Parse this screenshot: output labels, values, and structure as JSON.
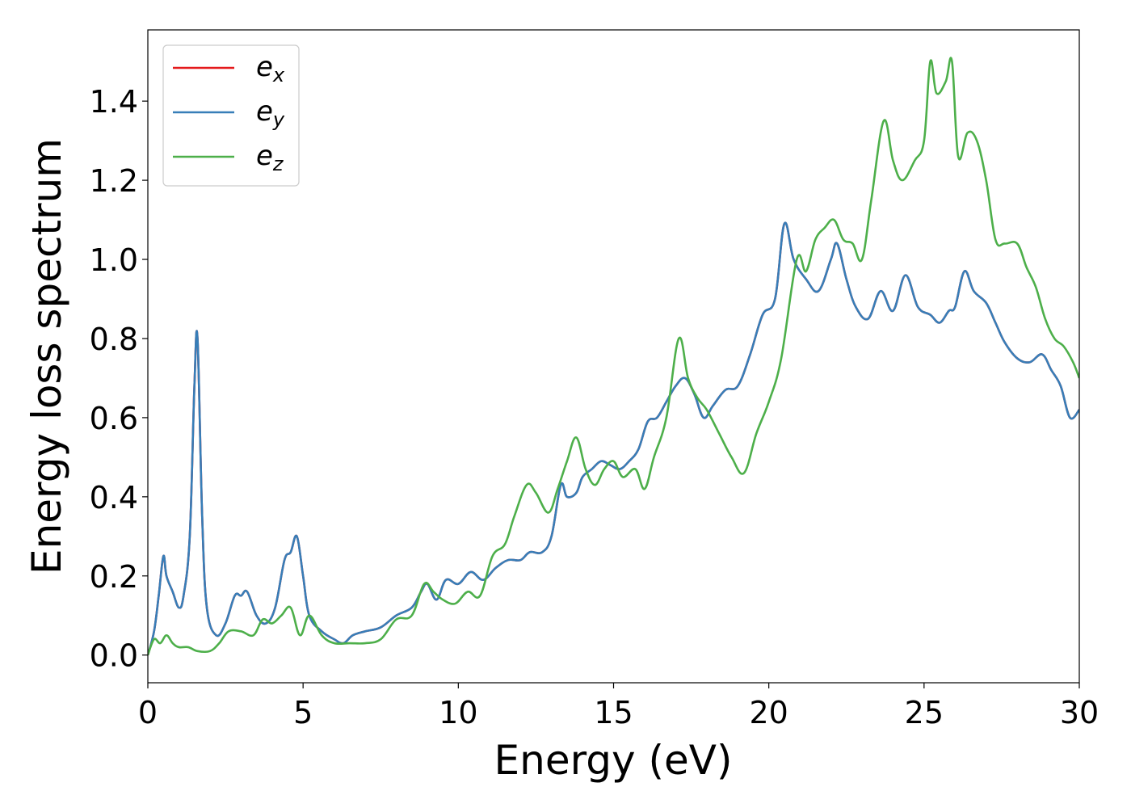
{
  "chart_data": {
    "type": "line",
    "title": "",
    "xlabel": "Energy (eV)",
    "ylabel": "Energy loss spectrum",
    "xlim": [
      0,
      30
    ],
    "ylim": [
      -0.07,
      1.58
    ],
    "xticks": [
      0,
      5,
      10,
      15,
      20,
      25,
      30
    ],
    "xtick_labels": [
      "0",
      "5",
      "10",
      "15",
      "20",
      "25",
      "30"
    ],
    "yticks": [
      0.0,
      0.2,
      0.4,
      0.6,
      0.8,
      1.0,
      1.2,
      1.4
    ],
    "ytick_labels": [
      "0.0",
      "0.2",
      "0.4",
      "0.6",
      "0.8",
      "1.0",
      "1.2",
      "1.4"
    ],
    "grid": false,
    "legend_position": "top-left",
    "series": [
      {
        "name": "e",
        "subscript": "x",
        "color": "#e41a1c",
        "x": [
          0,
          0.2,
          0.35,
          0.5,
          0.6,
          0.8,
          1.0,
          1.15,
          1.35,
          1.5,
          1.6,
          1.75,
          1.9,
          2.2,
          2.5,
          2.8,
          3.0,
          3.2,
          3.5,
          3.8,
          4.1,
          4.4,
          4.6,
          4.8,
          5.0,
          5.2,
          5.6,
          6.0,
          6.3,
          6.6,
          7.0,
          7.5,
          8.0,
          8.5,
          8.8,
          9.0,
          9.3,
          9.6,
          10.0,
          10.4,
          10.8,
          11.2,
          11.6,
          12.0,
          12.3,
          12.7,
          13.0,
          13.3,
          13.5,
          13.8,
          14.0,
          14.3,
          14.6,
          14.9,
          15.2,
          15.5,
          15.8,
          16.1,
          16.4,
          16.7,
          17.0,
          17.3,
          17.6,
          17.9,
          18.2,
          18.6,
          19.0,
          19.4,
          19.8,
          20.2,
          20.5,
          20.8,
          21.2,
          21.6,
          22.0,
          22.2,
          22.5,
          22.8,
          23.2,
          23.6,
          24.0,
          24.4,
          24.8,
          25.2,
          25.5,
          25.8,
          26.0,
          26.3,
          26.6,
          27.0,
          27.3,
          27.6,
          28.0,
          28.4,
          28.8,
          29.1,
          29.4,
          29.7,
          30.0
        ],
        "values": [
          0.0,
          0.06,
          0.15,
          0.25,
          0.2,
          0.16,
          0.12,
          0.15,
          0.3,
          0.68,
          0.8,
          0.35,
          0.12,
          0.05,
          0.08,
          0.15,
          0.15,
          0.16,
          0.1,
          0.08,
          0.12,
          0.24,
          0.26,
          0.3,
          0.2,
          0.1,
          0.06,
          0.04,
          0.03,
          0.05,
          0.06,
          0.07,
          0.1,
          0.12,
          0.16,
          0.18,
          0.14,
          0.19,
          0.18,
          0.21,
          0.19,
          0.22,
          0.24,
          0.24,
          0.26,
          0.26,
          0.3,
          0.43,
          0.4,
          0.41,
          0.45,
          0.47,
          0.49,
          0.48,
          0.47,
          0.49,
          0.52,
          0.59,
          0.6,
          0.64,
          0.68,
          0.7,
          0.66,
          0.6,
          0.63,
          0.67,
          0.68,
          0.76,
          0.86,
          0.9,
          1.09,
          1.0,
          0.95,
          0.92,
          1.0,
          1.04,
          0.95,
          0.88,
          0.85,
          0.92,
          0.87,
          0.96,
          0.88,
          0.86,
          0.84,
          0.87,
          0.88,
          0.97,
          0.92,
          0.89,
          0.84,
          0.79,
          0.75,
          0.74,
          0.76,
          0.72,
          0.68,
          0.6,
          0.62
        ]
      },
      {
        "name": "e",
        "subscript": "y",
        "color": "#377eb8",
        "x": [
          0,
          0.2,
          0.35,
          0.5,
          0.6,
          0.8,
          1.0,
          1.15,
          1.35,
          1.5,
          1.6,
          1.75,
          1.9,
          2.2,
          2.5,
          2.8,
          3.0,
          3.2,
          3.5,
          3.8,
          4.1,
          4.4,
          4.6,
          4.8,
          5.0,
          5.2,
          5.6,
          6.0,
          6.3,
          6.6,
          7.0,
          7.5,
          8.0,
          8.5,
          8.8,
          9.0,
          9.3,
          9.6,
          10.0,
          10.4,
          10.8,
          11.2,
          11.6,
          12.0,
          12.3,
          12.7,
          13.0,
          13.3,
          13.5,
          13.8,
          14.0,
          14.3,
          14.6,
          14.9,
          15.2,
          15.5,
          15.8,
          16.1,
          16.4,
          16.7,
          17.0,
          17.3,
          17.6,
          17.9,
          18.2,
          18.6,
          19.0,
          19.4,
          19.8,
          20.2,
          20.5,
          20.8,
          21.2,
          21.6,
          22.0,
          22.2,
          22.5,
          22.8,
          23.2,
          23.6,
          24.0,
          24.4,
          24.8,
          25.2,
          25.5,
          25.8,
          26.0,
          26.3,
          26.6,
          27.0,
          27.3,
          27.6,
          28.0,
          28.4,
          28.8,
          29.1,
          29.4,
          29.7,
          30.0
        ],
        "values": [
          0.0,
          0.06,
          0.15,
          0.25,
          0.2,
          0.16,
          0.12,
          0.15,
          0.3,
          0.68,
          0.8,
          0.35,
          0.12,
          0.05,
          0.08,
          0.15,
          0.15,
          0.16,
          0.1,
          0.08,
          0.12,
          0.24,
          0.26,
          0.3,
          0.2,
          0.1,
          0.06,
          0.04,
          0.03,
          0.05,
          0.06,
          0.07,
          0.1,
          0.12,
          0.16,
          0.18,
          0.14,
          0.19,
          0.18,
          0.21,
          0.19,
          0.22,
          0.24,
          0.24,
          0.26,
          0.26,
          0.3,
          0.43,
          0.4,
          0.41,
          0.45,
          0.47,
          0.49,
          0.48,
          0.47,
          0.49,
          0.52,
          0.59,
          0.6,
          0.64,
          0.68,
          0.7,
          0.66,
          0.6,
          0.63,
          0.67,
          0.68,
          0.76,
          0.86,
          0.9,
          1.09,
          1.0,
          0.95,
          0.92,
          1.0,
          1.04,
          0.95,
          0.88,
          0.85,
          0.92,
          0.87,
          0.96,
          0.88,
          0.86,
          0.84,
          0.87,
          0.88,
          0.97,
          0.92,
          0.89,
          0.84,
          0.79,
          0.75,
          0.74,
          0.76,
          0.72,
          0.68,
          0.6,
          0.62
        ]
      },
      {
        "name": "e",
        "subscript": "z",
        "color": "#4daf4a",
        "x": [
          0,
          0.2,
          0.4,
          0.6,
          0.8,
          1.0,
          1.3,
          1.6,
          2.0,
          2.3,
          2.6,
          3.0,
          3.4,
          3.7,
          4.0,
          4.3,
          4.6,
          4.9,
          5.2,
          5.6,
          6.0,
          6.5,
          7.0,
          7.5,
          8.0,
          8.5,
          8.9,
          9.2,
          9.5,
          9.9,
          10.3,
          10.7,
          11.1,
          11.5,
          11.8,
          12.2,
          12.5,
          12.9,
          13.2,
          13.5,
          13.8,
          14.1,
          14.4,
          14.7,
          15.0,
          15.3,
          15.7,
          16.0,
          16.3,
          16.7,
          17.1,
          17.4,
          17.7,
          18.0,
          18.4,
          18.8,
          19.2,
          19.6,
          20.0,
          20.4,
          20.9,
          21.2,
          21.5,
          21.8,
          22.1,
          22.4,
          22.7,
          23.0,
          23.3,
          23.7,
          24.0,
          24.3,
          24.7,
          25.0,
          25.2,
          25.4,
          25.7,
          25.9,
          26.1,
          26.4,
          26.7,
          27.0,
          27.3,
          27.6,
          28.0,
          28.3,
          28.6,
          28.9,
          29.2,
          29.5,
          29.8,
          30.0
        ],
        "values": [
          0.0,
          0.04,
          0.03,
          0.05,
          0.03,
          0.02,
          0.02,
          0.01,
          0.01,
          0.03,
          0.06,
          0.06,
          0.05,
          0.09,
          0.08,
          0.1,
          0.12,
          0.05,
          0.1,
          0.05,
          0.03,
          0.03,
          0.03,
          0.04,
          0.09,
          0.1,
          0.18,
          0.16,
          0.14,
          0.13,
          0.16,
          0.15,
          0.25,
          0.28,
          0.35,
          0.43,
          0.41,
          0.36,
          0.42,
          0.49,
          0.55,
          0.47,
          0.43,
          0.47,
          0.49,
          0.45,
          0.47,
          0.42,
          0.5,
          0.6,
          0.8,
          0.7,
          0.65,
          0.62,
          0.56,
          0.5,
          0.46,
          0.56,
          0.64,
          0.75,
          1.0,
          0.97,
          1.05,
          1.08,
          1.1,
          1.05,
          1.04,
          1.0,
          1.15,
          1.35,
          1.25,
          1.2,
          1.25,
          1.3,
          1.5,
          1.42,
          1.45,
          1.5,
          1.26,
          1.32,
          1.3,
          1.2,
          1.05,
          1.04,
          1.04,
          0.98,
          0.93,
          0.85,
          0.8,
          0.78,
          0.74,
          0.7
        ]
      }
    ]
  }
}
